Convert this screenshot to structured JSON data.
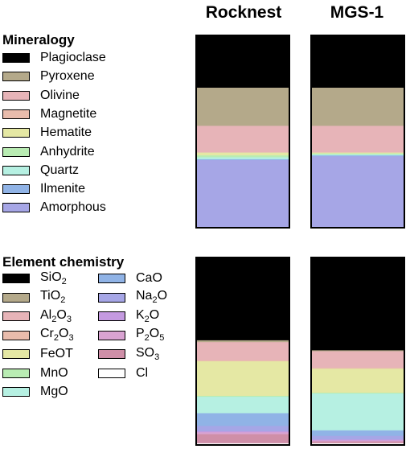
{
  "chart_data": [
    {
      "type": "bar",
      "stacked": true,
      "normalized": true,
      "section_title": "Mineralogy",
      "categories": [
        "Rocknest",
        "MGS-1"
      ],
      "legend": [
        {
          "label": "Plagioclase",
          "color": "#000000"
        },
        {
          "label": "Pyroxene",
          "color": "#b4a98a"
        },
        {
          "label": "Olivine",
          "color": "#e7b4b8"
        },
        {
          "label": "Magnetite",
          "color": "#e9bcac"
        },
        {
          "label": "Hematite",
          "color": "#e5e8a4"
        },
        {
          "label": "Anhydrite",
          "color": "#b9ecb3"
        },
        {
          "label": "Quartz",
          "color": "#b6f0e2"
        },
        {
          "label": "Ilmenite",
          "color": "#90b3e6"
        },
        {
          "label": "Amorphous",
          "color": "#a6a6e6"
        }
      ],
      "series": [
        {
          "name": "Plagioclase",
          "values": [
            27,
            27
          ]
        },
        {
          "name": "Pyroxene",
          "values": [
            20,
            20
          ]
        },
        {
          "name": "Olivine",
          "values": [
            14,
            14
          ]
        },
        {
          "name": "Magnetite",
          "values": [
            0,
            0
          ]
        },
        {
          "name": "Hematite",
          "values": [
            1.5,
            0.5
          ]
        },
        {
          "name": "Anhydrite",
          "values": [
            1,
            0.5
          ]
        },
        {
          "name": "Quartz",
          "values": [
            1,
            0.5
          ]
        },
        {
          "name": "Ilmenite",
          "values": [
            0.5,
            0.5
          ]
        },
        {
          "name": "Amorphous",
          "values": [
            35,
            37
          ]
        }
      ]
    },
    {
      "type": "bar",
      "stacked": true,
      "normalized": true,
      "section_title": "Element chemistry",
      "categories": [
        "Rocknest",
        "MGS-1"
      ],
      "legend": [
        {
          "label": "SiO",
          "sub": "2",
          "label_tail": "",
          "color": "#000000"
        },
        {
          "label": "TiO",
          "sub": "2",
          "label_tail": "",
          "color": "#b4a98a"
        },
        {
          "label": "Al",
          "sub": "2",
          "label_tail": "O",
          "sub2": "3",
          "color": "#e7b4b8"
        },
        {
          "label": "Cr",
          "sub": "2",
          "label_tail": "O",
          "sub2": "3",
          "color": "#e9bcac"
        },
        {
          "label": "FeOT",
          "sub": "",
          "label_tail": "",
          "color": "#e5e8a4"
        },
        {
          "label": "MnO",
          "sub": "",
          "label_tail": "",
          "color": "#b9ecb3"
        },
        {
          "label": "MgO",
          "sub": "",
          "label_tail": "",
          "color": "#b6f0e2"
        },
        {
          "label": "CaO",
          "sub": "",
          "label_tail": "",
          "color": "#90b3e6"
        },
        {
          "label": "Na",
          "sub": "2",
          "label_tail": "O",
          "color": "#a6a6e6"
        },
        {
          "label": "K",
          "sub": "2",
          "label_tail": "O",
          "color": "#c49ae0"
        },
        {
          "label": "P",
          "sub": "2",
          "label_tail": "O",
          "sub2": "5",
          "color": "#d9a3d2"
        },
        {
          "label": "SO",
          "sub": "3",
          "label_tail": "",
          "color": "#cf8fa8"
        },
        {
          "label": "Cl",
          "sub": "",
          "label_tail": "",
          "color": "#ffffff"
        }
      ],
      "series": [
        {
          "name": "SiO2",
          "values": [
            45,
            50
          ]
        },
        {
          "name": "TiO2",
          "values": [
            1,
            0.5
          ]
        },
        {
          "name": "Al2O3",
          "values": [
            10,
            9
          ]
        },
        {
          "name": "Cr2O3",
          "values": [
            0.5,
            0.5
          ]
        },
        {
          "name": "FeOT",
          "values": [
            19,
            13
          ]
        },
        {
          "name": "MnO",
          "values": [
            0.5,
            0.5
          ]
        },
        {
          "name": "MgO",
          "values": [
            9,
            20
          ]
        },
        {
          "name": "CaO",
          "values": [
            7,
            3
          ]
        },
        {
          "name": "Na2O",
          "values": [
            3,
            2
          ]
        },
        {
          "name": "K2O",
          "values": [
            0.5,
            0.5
          ]
        },
        {
          "name": "P2O5",
          "values": [
            1,
            0.5
          ]
        },
        {
          "name": "SO3",
          "values": [
            5,
            1
          ]
        },
        {
          "name": "Cl",
          "values": [
            0.5,
            0.5
          ]
        }
      ]
    }
  ]
}
